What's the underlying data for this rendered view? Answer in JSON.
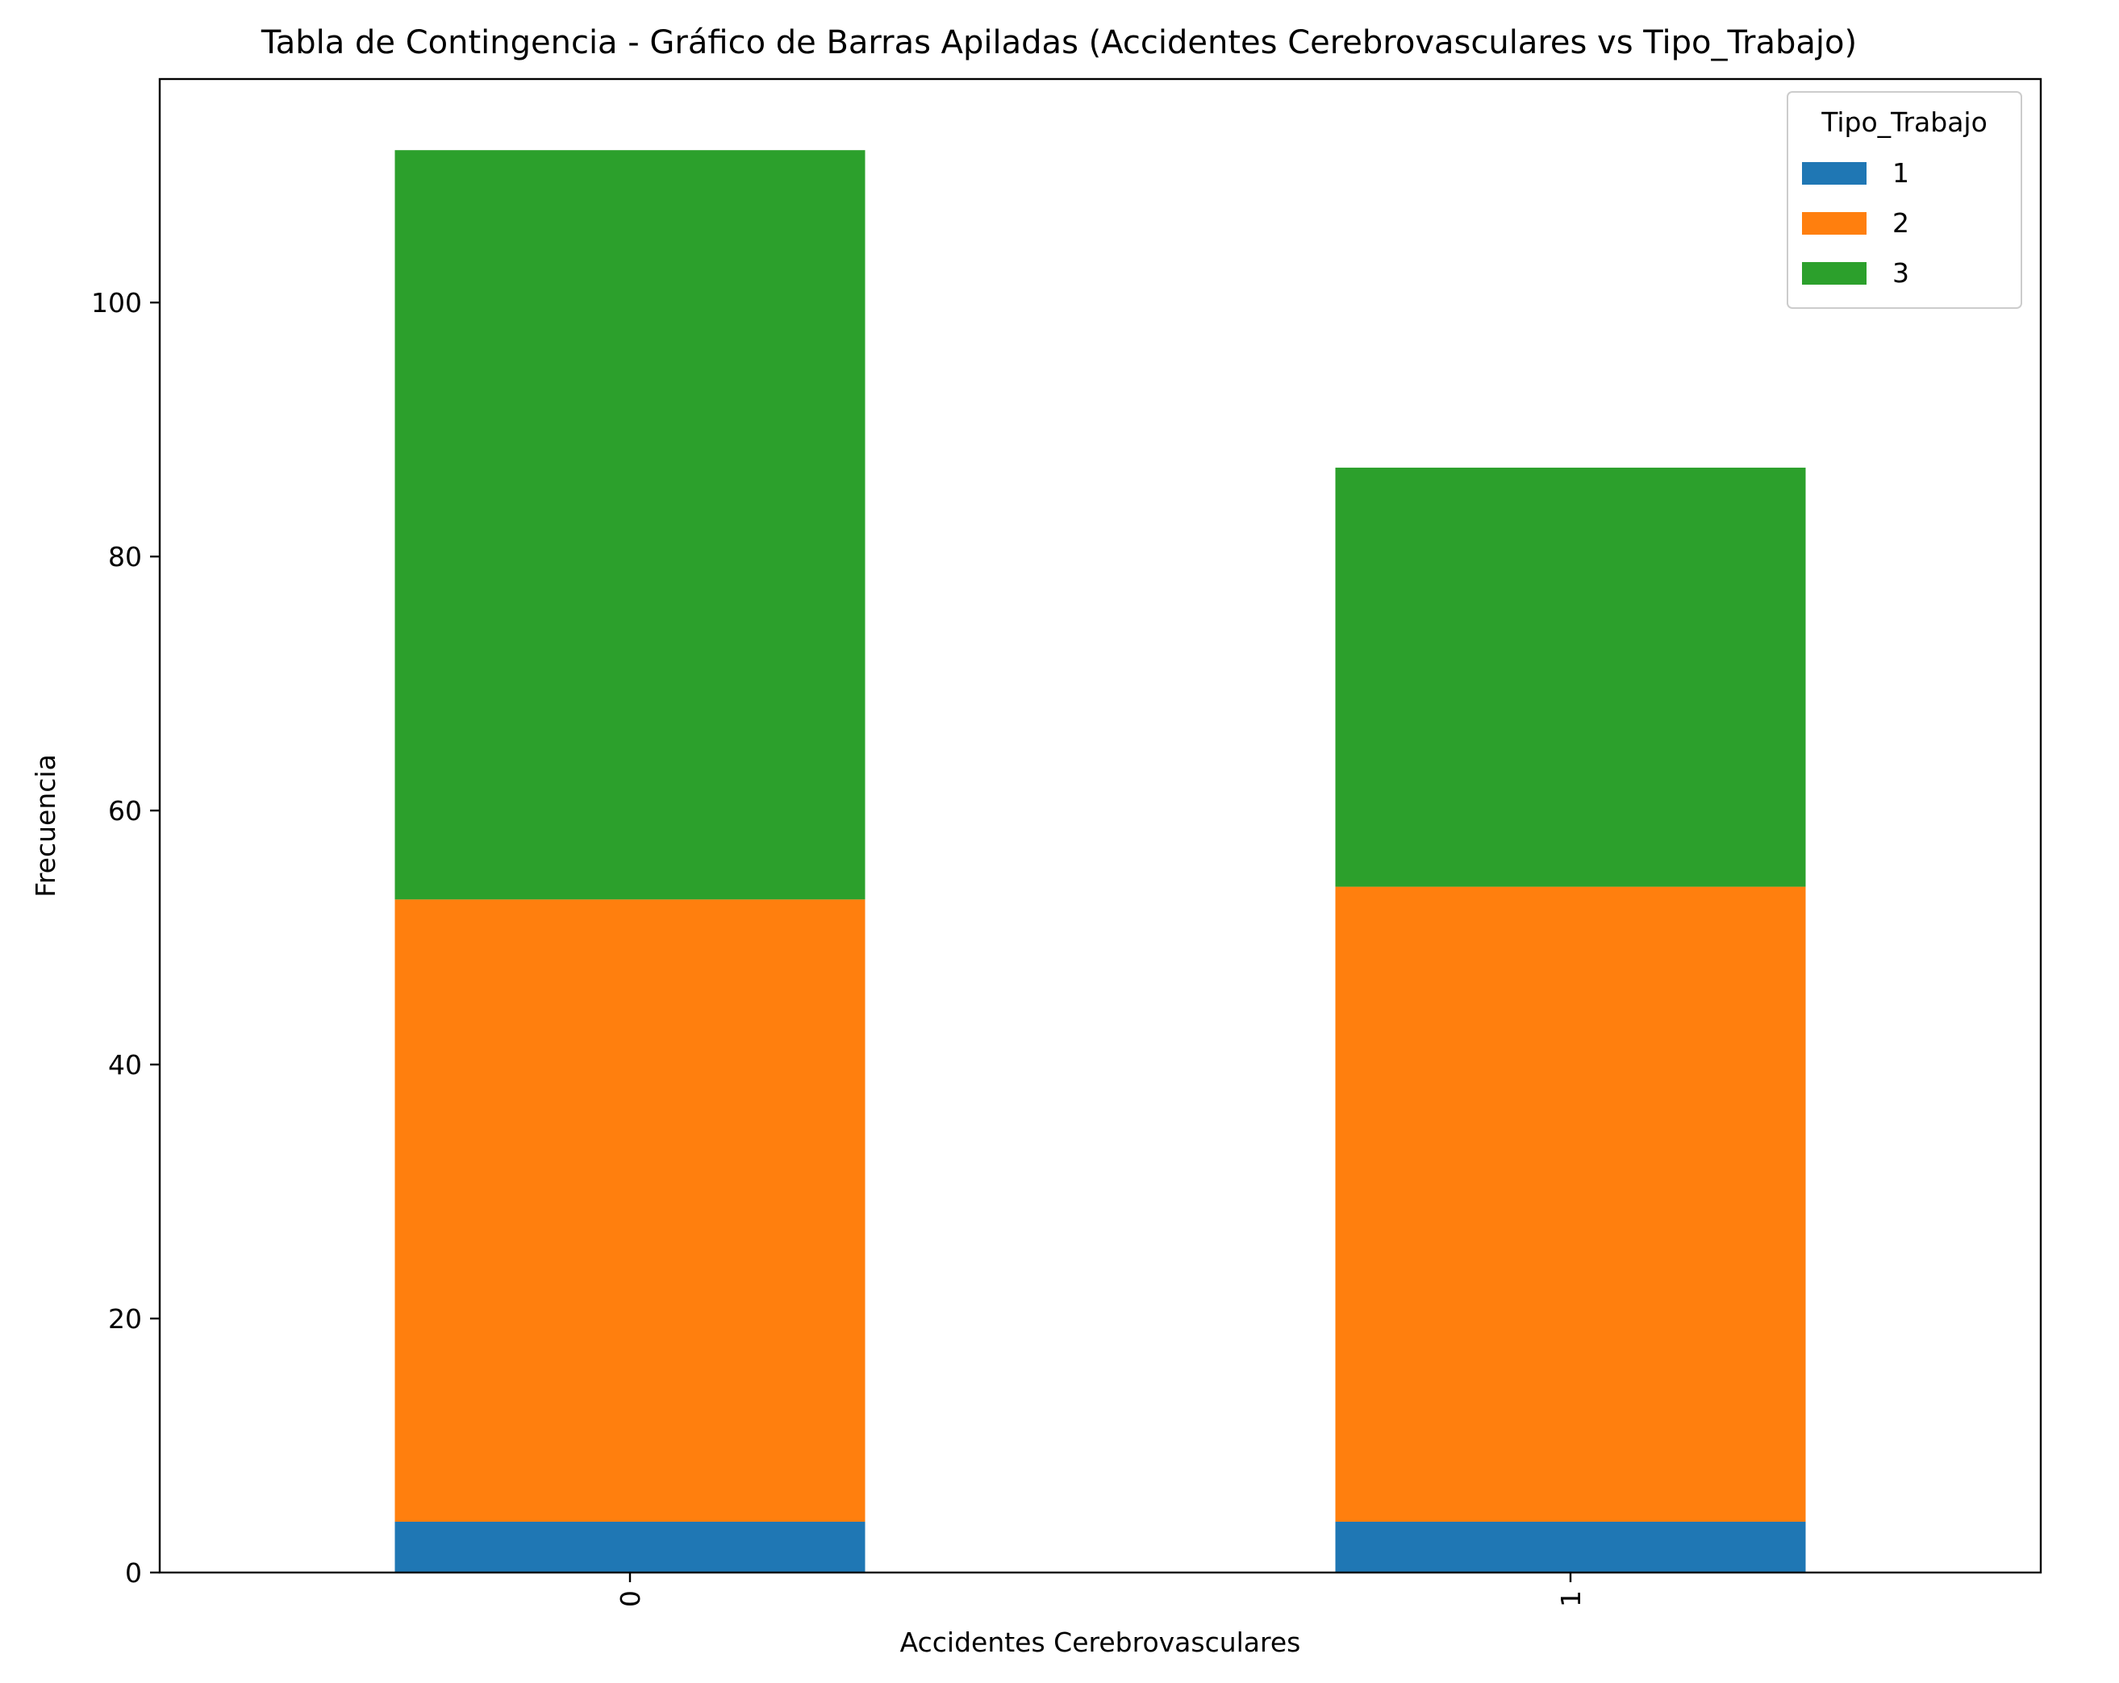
{
  "chart_data": {
    "type": "bar",
    "stacked": true,
    "title": "Tabla de Contingencia - Gráfico de Barras Apiladas (Accidentes Cerebrovasculares vs Tipo_Trabajo)",
    "xlabel": "Accidentes Cerebrovasculares",
    "ylabel": "Frecuencia",
    "categories": [
      "0",
      "1"
    ],
    "series": [
      {
        "name": "1",
        "values": [
          4,
          4
        ],
        "color": "#1f77b4"
      },
      {
        "name": "2",
        "values": [
          49,
          50
        ],
        "color": "#ff7f0e"
      },
      {
        "name": "3",
        "values": [
          59,
          33
        ],
        "color": "#2ca02c"
      }
    ],
    "ylim": [
      0,
      117.6
    ],
    "yticks": [
      0,
      20,
      40,
      60,
      80,
      100
    ],
    "ytick_labels": [
      "0",
      "20",
      "40",
      "60",
      "80",
      "100"
    ],
    "grid": false,
    "legend": {
      "title": "Tipo_Trabajo",
      "placement": "top-right"
    }
  }
}
